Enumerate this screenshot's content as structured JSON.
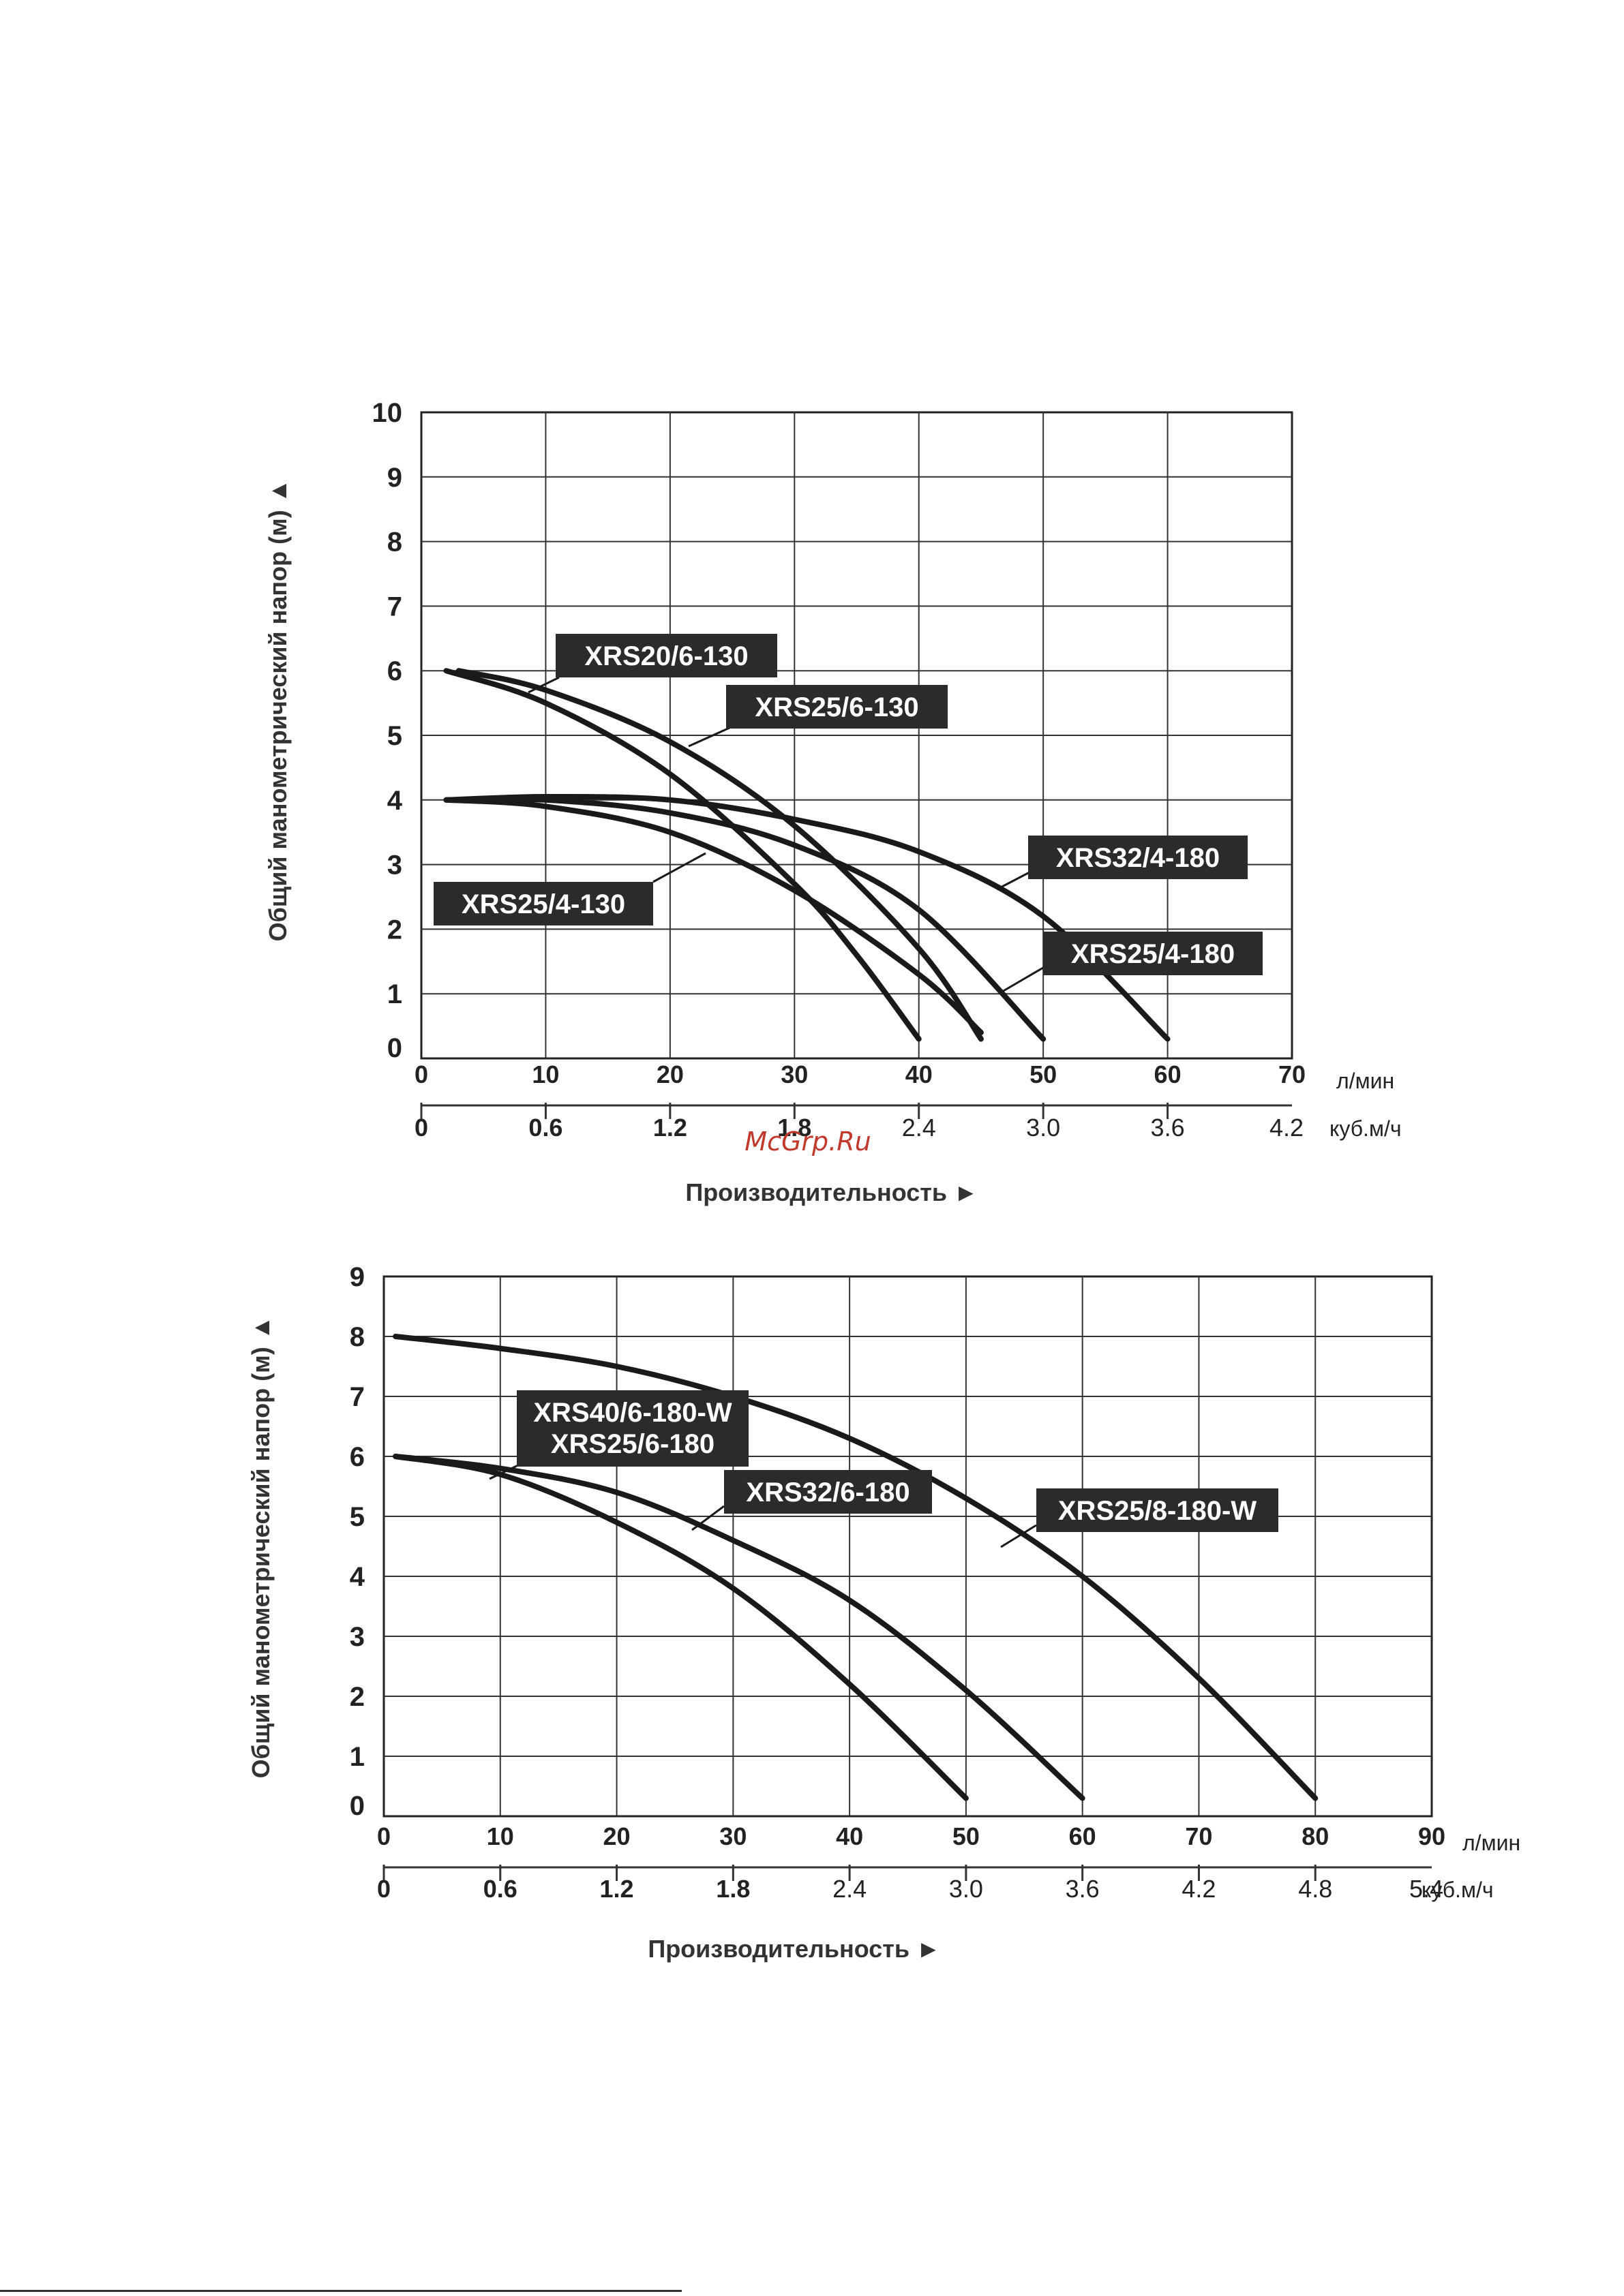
{
  "page": {
    "watermark": "McGrp.Ru"
  },
  "chart_data": [
    {
      "type": "line",
      "ylabel": "Общий манометрический напор (м) ▲",
      "xlabel": "Производительность ►",
      "x_unit_primary": "л/мин",
      "x_unit_secondary": "куб.м/ч",
      "xlim": [
        0,
        70
      ],
      "ylim": [
        0,
        10
      ],
      "x_ticks": [
        "0",
        "10",
        "20",
        "30",
        "40",
        "50",
        "60",
        "70"
      ],
      "x_ticks_secondary": [
        "0",
        "0.6",
        "1.2",
        "1.8",
        "2.4",
        "3.0",
        "3.6",
        "4.2"
      ],
      "y_ticks": [
        "0",
        "1",
        "2",
        "3",
        "4",
        "5",
        "6",
        "7",
        "8",
        "9",
        "10"
      ],
      "grid": true,
      "series": [
        {
          "name": "XRS20/6-130",
          "x": [
            2,
            10,
            20,
            30,
            35,
            40
          ],
          "y": [
            6.0,
            5.5,
            4.4,
            2.7,
            1.6,
            0.3
          ]
        },
        {
          "name": "XRS25/6-130",
          "x": [
            3,
            10,
            20,
            30,
            40,
            45
          ],
          "y": [
            6.0,
            5.7,
            4.9,
            3.6,
            1.7,
            0.3
          ]
        },
        {
          "name": "XRS25/4-130",
          "x": [
            2,
            10,
            20,
            30,
            40,
            45
          ],
          "y": [
            4.0,
            3.9,
            3.5,
            2.6,
            1.3,
            0.4
          ]
        },
        {
          "name": "XRS25/4-180",
          "x": [
            2,
            10,
            20,
            30,
            40,
            50
          ],
          "y": [
            4.0,
            4.0,
            3.8,
            3.3,
            2.3,
            0.3
          ]
        },
        {
          "name": "XRS32/4-180",
          "x": [
            2,
            10,
            20,
            30,
            40,
            50,
            60
          ],
          "y": [
            4.0,
            4.05,
            4.0,
            3.7,
            3.2,
            2.2,
            0.3
          ]
        }
      ],
      "labels": [
        "XRS20/6-130",
        "XRS25/6-130",
        "XRS32/4-180",
        "XRS25/4-130",
        "XRS25/4-180"
      ]
    },
    {
      "type": "line",
      "ylabel": "Общий манометрический напор (м) ▲",
      "xlabel": "Производительность ►",
      "x_unit_primary": "л/мин",
      "x_unit_secondary": "куб.м/ч",
      "xlim": [
        0,
        90
      ],
      "ylim": [
        0,
        9
      ],
      "x_ticks": [
        "0",
        "10",
        "20",
        "30",
        "40",
        "50",
        "60",
        "70",
        "80",
        "90"
      ],
      "x_ticks_secondary": [
        "0",
        "0.6",
        "1.2",
        "1.8",
        "2.4",
        "3.0",
        "3.6",
        "4.2",
        "4.8",
        "5.4"
      ],
      "y_ticks": [
        "0",
        "1",
        "2",
        "3",
        "4",
        "5",
        "6",
        "7",
        "8",
        "9"
      ],
      "grid": true,
      "series": [
        {
          "name": "XRS40/6-180-W / XRS25/6-180",
          "x": [
            1,
            10,
            20,
            30,
            40,
            50
          ],
          "y": [
            6.0,
            5.7,
            4.9,
            3.8,
            2.2,
            0.3
          ]
        },
        {
          "name": "XRS32/6-180",
          "x": [
            1,
            10,
            20,
            30,
            40,
            50,
            60
          ],
          "y": [
            6.0,
            5.8,
            5.4,
            4.6,
            3.6,
            2.1,
            0.3
          ]
        },
        {
          "name": "XRS25/8-180-W",
          "x": [
            1,
            10,
            20,
            30,
            40,
            50,
            60,
            70,
            80
          ],
          "y": [
            8.0,
            7.8,
            7.5,
            7.0,
            6.3,
            5.3,
            4.0,
            2.3,
            0.3
          ]
        }
      ],
      "labels": [
        "XRS40/6-180-W\nXRS25/6-180",
        "XRS32/6-180",
        "XRS25/8-180-W"
      ]
    }
  ]
}
